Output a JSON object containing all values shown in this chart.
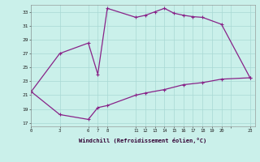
{
  "x": [
    0,
    3,
    6,
    7,
    8,
    11,
    12,
    13,
    14,
    15,
    16,
    17,
    18,
    20,
    23,
    23,
    20,
    18,
    16,
    14,
    12,
    11,
    8,
    7,
    6,
    3,
    0
  ],
  "y": [
    21.5,
    27.0,
    28.5,
    24.0,
    33.5,
    32.2,
    32.5,
    33.0,
    33.5,
    32.8,
    32.5,
    32.3,
    32.2,
    31.2,
    23.5,
    23.5,
    23.3,
    22.8,
    22.5,
    21.8,
    21.3,
    21.0,
    19.5,
    19.2,
    17.5,
    18.2,
    21.5
  ],
  "line_color": "#882288",
  "bg_color": "#caf0ea",
  "grid_color": "#a8d8d4",
  "xlabel": "Windchill (Refroidissement éolien,°C)",
  "xtick_labels": [
    "0",
    "3",
    "6",
    "7",
    "8",
    "11",
    "12",
    "13",
    "14",
    "15",
    "16",
    "17",
    "18",
    "19",
    "20",
    "",
    "23"
  ],
  "xtick_positions": [
    0,
    3,
    6,
    7,
    8,
    11,
    12,
    13,
    14,
    15,
    16,
    17,
    18,
    19,
    20,
    21,
    23
  ],
  "ytick_positions": [
    17,
    19,
    21,
    23,
    25,
    27,
    29,
    31,
    33
  ],
  "ytick_labels": [
    "17",
    "19",
    "21",
    "23",
    "25",
    "27",
    "29",
    "31",
    "33"
  ],
  "xlim": [
    0,
    23.5
  ],
  "ylim": [
    16.5,
    34.0
  ]
}
